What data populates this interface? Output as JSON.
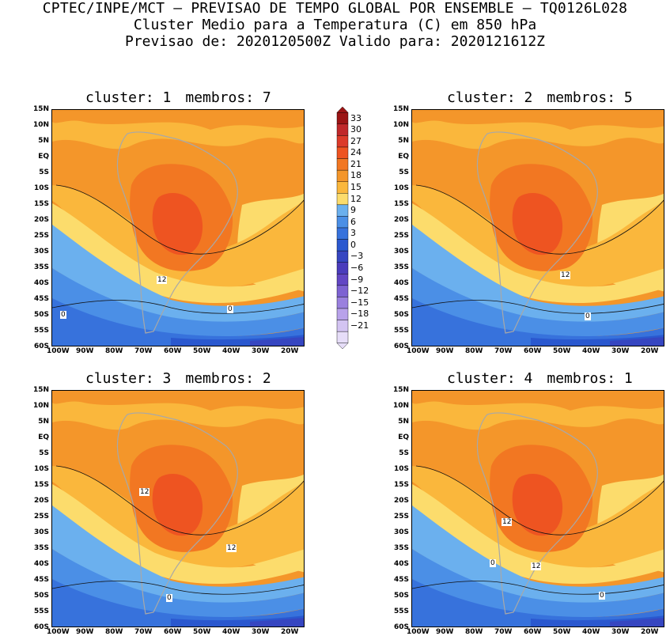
{
  "title": {
    "line1": "CPTEC/INPE/MCT — PREVISAO DE TEMPO GLOBAL POR ENSEMBLE — TQ0126L028",
    "line2": "Cluster Medio para a Temperatura (C) em 850 hPa",
    "line3": "Previsao de: 2020120500Z   Valido para: 2020121612Z"
  },
  "panels": [
    {
      "cluster_label": "cluster: 1",
      "members_label": "membros: 7",
      "contour_labels": [
        "12",
        "0",
        "0"
      ]
    },
    {
      "cluster_label": "cluster: 2",
      "members_label": "membros: 5",
      "contour_labels": [
        "12",
        "0"
      ]
    },
    {
      "cluster_label": "cluster: 3",
      "members_label": "membros: 2",
      "contour_labels": [
        "12",
        "12",
        "0"
      ]
    },
    {
      "cluster_label": "cluster: 4",
      "members_label": "membros: 1",
      "contour_labels": [
        "12",
        "12",
        "0",
        "0"
      ]
    }
  ],
  "lat_ticks": [
    "15N",
    "10N",
    "5N",
    "EQ",
    "5S",
    "10S",
    "15S",
    "20S",
    "25S",
    "30S",
    "35S",
    "40S",
    "45S",
    "50S",
    "55S",
    "60S"
  ],
  "lon_ticks": [
    "100W",
    "90W",
    "80W",
    "70W",
    "60W",
    "50W",
    "40W",
    "30W",
    "20W"
  ],
  "colorbar": {
    "labels": [
      "33",
      "30",
      "27",
      "24",
      "21",
      "18",
      "15",
      "12",
      "9",
      "6",
      "3",
      "0",
      "−3",
      "−6",
      "−9",
      "−12",
      "−15",
      "−18",
      "−21"
    ],
    "colors": [
      "#9c1414",
      "#c0282a",
      "#dc3b2a",
      "#ee5421",
      "#f27722",
      "#f4962a",
      "#fab73c",
      "#fcdc6c",
      "#6bb0ee",
      "#4b8fe6",
      "#3772dc",
      "#2a58cf",
      "#3646c1",
      "#4a3cbc",
      "#6246c4",
      "#7d62d2",
      "#9a80de",
      "#b8a2ea",
      "#d3c4f2",
      "#e6ddf8"
    ]
  },
  "field_colors": {
    "t21": "#ee5421",
    "t18": "#f27722",
    "t15": "#f4962a",
    "t12": "#fab73c",
    "t9": "#fcdc6c",
    "t6": "#6bb0ee",
    "t3": "#4b8fe6",
    "t0": "#3772dc",
    "tm3": "#2a58cf",
    "tm6": "#3646c1",
    "land": "#a8a8a8"
  }
}
